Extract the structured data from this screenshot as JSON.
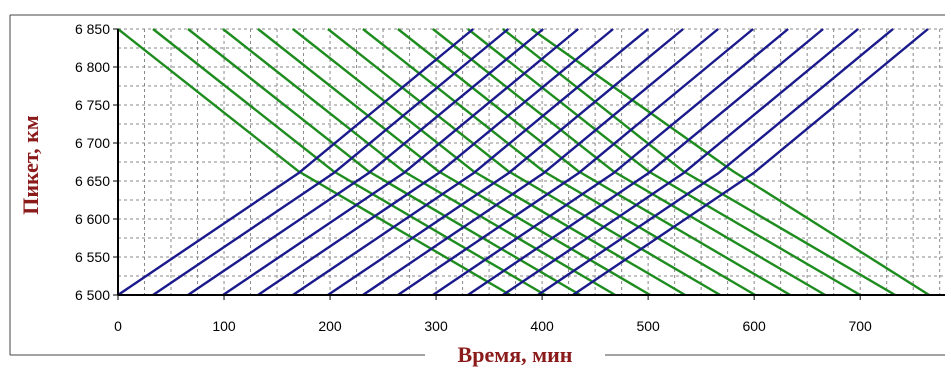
{
  "chart_data": {
    "type": "line",
    "title": "",
    "xlabel": "Время, мин",
    "ylabel": "Пикет, км",
    "xlim": [
      0,
      780
    ],
    "ylim": [
      6500,
      6850
    ],
    "x_ticks": [
      0,
      100,
      200,
      300,
      400,
      500,
      600,
      700
    ],
    "x_tick_labels": [
      "0",
      "100",
      "200",
      "300",
      "400",
      "500",
      "600",
      "700"
    ],
    "y_ticks": [
      6500,
      6550,
      6600,
      6650,
      6700,
      6750,
      6800,
      6850
    ],
    "y_tick_labels": [
      "6 500",
      "6 550",
      "6 600",
      "6 650",
      "6 700",
      "6 750",
      "6 800",
      "6 850"
    ],
    "grid": true,
    "colors": {
      "descending": "#1e8c1e",
      "ascending": "#1a1a8c",
      "axis_title": "#8b1a1a"
    },
    "series": [
      {
        "direction": "descending",
        "points": [
          [
            0,
            6850
          ],
          [
            170,
            6663
          ],
          [
            370,
            6500
          ]
        ]
      },
      {
        "direction": "descending",
        "points": [
          [
            33,
            6850
          ],
          [
            203,
            6663
          ],
          [
            403,
            6500
          ]
        ]
      },
      {
        "direction": "descending",
        "points": [
          [
            66,
            6850
          ],
          [
            236,
            6663
          ],
          [
            436,
            6500
          ]
        ]
      },
      {
        "direction": "descending",
        "points": [
          [
            99,
            6850
          ],
          [
            269,
            6663
          ],
          [
            469,
            6500
          ]
        ]
      },
      {
        "direction": "descending",
        "points": [
          [
            132,
            6850
          ],
          [
            302,
            6663
          ],
          [
            502,
            6500
          ]
        ]
      },
      {
        "direction": "descending",
        "points": [
          [
            165,
            6850
          ],
          [
            335,
            6663
          ],
          [
            535,
            6500
          ]
        ]
      },
      {
        "direction": "descending",
        "points": [
          [
            198,
            6850
          ],
          [
            368,
            6663
          ],
          [
            568,
            6500
          ]
        ]
      },
      {
        "direction": "descending",
        "points": [
          [
            231,
            6850
          ],
          [
            401,
            6663
          ],
          [
            601,
            6500
          ]
        ]
      },
      {
        "direction": "descending",
        "points": [
          [
            264,
            6850
          ],
          [
            434,
            6663
          ],
          [
            634,
            6500
          ]
        ]
      },
      {
        "direction": "descending",
        "points": [
          [
            297,
            6850
          ],
          [
            467,
            6663
          ],
          [
            667,
            6500
          ]
        ]
      },
      {
        "direction": "descending",
        "points": [
          [
            330,
            6850
          ],
          [
            500,
            6663
          ],
          [
            700,
            6500
          ]
        ]
      },
      {
        "direction": "descending",
        "points": [
          [
            363,
            6850
          ],
          [
            533,
            6663
          ],
          [
            733,
            6500
          ]
        ]
      },
      {
        "direction": "descending",
        "points": [
          [
            390,
            6850
          ],
          [
            580,
            6663
          ],
          [
            765,
            6500
          ]
        ]
      },
      {
        "direction": "ascending",
        "points": [
          [
            0,
            6500
          ],
          [
            170,
            6660
          ],
          [
            335,
            6850
          ]
        ]
      },
      {
        "direction": "ascending",
        "points": [
          [
            33,
            6500
          ],
          [
            203,
            6660
          ],
          [
            368,
            6850
          ]
        ]
      },
      {
        "direction": "ascending",
        "points": [
          [
            66,
            6500
          ],
          [
            236,
            6660
          ],
          [
            401,
            6850
          ]
        ]
      },
      {
        "direction": "ascending",
        "points": [
          [
            99,
            6500
          ],
          [
            269,
            6660
          ],
          [
            434,
            6850
          ]
        ]
      },
      {
        "direction": "ascending",
        "points": [
          [
            132,
            6500
          ],
          [
            302,
            6660
          ],
          [
            467,
            6850
          ]
        ]
      },
      {
        "direction": "ascending",
        "points": [
          [
            165,
            6500
          ],
          [
            335,
            6660
          ],
          [
            500,
            6850
          ]
        ]
      },
      {
        "direction": "ascending",
        "points": [
          [
            198,
            6500
          ],
          [
            368,
            6660
          ],
          [
            533,
            6850
          ]
        ]
      },
      {
        "direction": "ascending",
        "points": [
          [
            231,
            6500
          ],
          [
            401,
            6660
          ],
          [
            566,
            6850
          ]
        ]
      },
      {
        "direction": "ascending",
        "points": [
          [
            264,
            6500
          ],
          [
            434,
            6660
          ],
          [
            599,
            6850
          ]
        ]
      },
      {
        "direction": "ascending",
        "points": [
          [
            297,
            6500
          ],
          [
            467,
            6660
          ],
          [
            632,
            6850
          ]
        ]
      },
      {
        "direction": "ascending",
        "points": [
          [
            330,
            6500
          ],
          [
            500,
            6660
          ],
          [
            665,
            6850
          ]
        ]
      },
      {
        "direction": "ascending",
        "points": [
          [
            363,
            6500
          ],
          [
            533,
            6660
          ],
          [
            698,
            6850
          ]
        ]
      },
      {
        "direction": "ascending",
        "points": [
          [
            396,
            6500
          ],
          [
            566,
            6660
          ],
          [
            731,
            6850
          ]
        ]
      },
      {
        "direction": "ascending",
        "points": [
          [
            429,
            6500
          ],
          [
            599,
            6660
          ],
          [
            764,
            6850
          ]
        ]
      }
    ]
  }
}
